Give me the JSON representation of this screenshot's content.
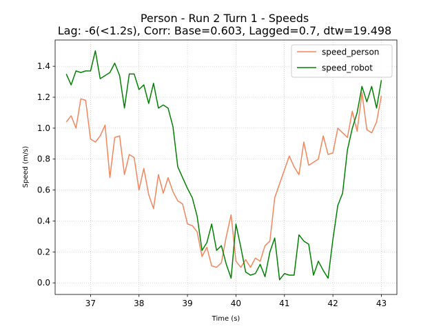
{
  "chart_data": {
    "type": "line",
    "title": "Person - Run 2 Turn 1 - Speeds",
    "subtitle": "Lag: -6(<1.2s), Corr: Base=0.603, Lagged=0.7, dtw=19.498",
    "xlabel": "Time (s)",
    "ylabel": "Speed (m/s)",
    "xlim": [
      36.27,
      43.32
    ],
    "ylim": [
      -0.075,
      1.57
    ],
    "xticks": [
      37,
      38,
      39,
      40,
      41,
      42,
      43
    ],
    "yticks": [
      0.0,
      0.2,
      0.4,
      0.6,
      0.8,
      1.0,
      1.2,
      1.4
    ],
    "ytick_labels": [
      "0.0",
      "0.2",
      "0.4",
      "0.6",
      "0.8",
      "1.0",
      "1.2",
      "1.4"
    ],
    "grid": true,
    "legend_position": "upper right",
    "series": [
      {
        "name": "speed_person",
        "color": "#f4845a",
        "x": [
          36.5,
          36.6,
          36.7,
          36.8,
          36.9,
          37.0,
          37.1,
          37.2,
          37.3,
          37.4,
          37.5,
          37.6,
          37.7,
          37.8,
          37.9,
          38.0,
          38.1,
          38.2,
          38.3,
          38.4,
          38.5,
          38.6,
          38.7,
          38.8,
          38.9,
          39.0,
          39.1,
          39.2,
          39.3,
          39.4,
          39.5,
          39.6,
          39.7,
          39.8,
          39.9,
          40.0,
          40.1,
          40.2,
          40.3,
          40.4,
          40.5,
          40.6,
          40.7,
          40.8,
          40.9,
          41.0,
          41.1,
          41.2,
          41.3,
          41.4,
          41.5,
          41.6,
          41.7,
          41.8,
          41.9,
          42.0,
          42.1,
          42.2,
          42.3,
          42.4,
          42.5,
          42.6,
          42.7,
          42.8,
          42.9,
          43.0
        ],
        "values": [
          1.04,
          1.08,
          1.0,
          1.19,
          1.18,
          0.93,
          0.91,
          0.95,
          1.02,
          0.68,
          0.94,
          0.95,
          0.7,
          0.83,
          0.81,
          0.6,
          0.74,
          0.57,
          0.48,
          0.7,
          0.58,
          0.68,
          0.59,
          0.53,
          0.51,
          0.38,
          0.37,
          0.33,
          0.17,
          0.23,
          0.11,
          0.1,
          0.13,
          0.3,
          0.44,
          0.14,
          0.1,
          0.15,
          0.1,
          0.16,
          0.14,
          0.24,
          0.27,
          0.55,
          0.64,
          0.73,
          0.82,
          0.75,
          0.7,
          0.91,
          0.76,
          0.78,
          0.8,
          0.95,
          0.83,
          0.84,
          1.0,
          0.97,
          0.94,
          1.11,
          0.98,
          1.23,
          0.99,
          0.97,
          1.04,
          1.21
        ]
      },
      {
        "name": "speed_robot",
        "color": "#008000",
        "x": [
          36.5,
          36.6,
          36.7,
          36.8,
          36.9,
          37.0,
          37.1,
          37.2,
          37.3,
          37.4,
          37.5,
          37.6,
          37.7,
          37.8,
          37.9,
          38.0,
          38.1,
          38.2,
          38.3,
          38.4,
          38.5,
          38.6,
          38.7,
          38.8,
          38.9,
          39.0,
          39.1,
          39.2,
          39.3,
          39.4,
          39.5,
          39.6,
          39.7,
          39.8,
          39.9,
          40.0,
          40.1,
          40.2,
          40.3,
          40.4,
          40.5,
          40.6,
          40.7,
          40.8,
          40.9,
          41.0,
          41.1,
          41.2,
          41.3,
          41.4,
          41.5,
          41.6,
          41.7,
          41.8,
          41.9,
          42.0,
          42.1,
          42.2,
          42.3,
          42.4,
          42.5,
          42.6,
          42.7,
          42.8,
          42.9,
          43.0
        ],
        "values": [
          1.35,
          1.28,
          1.37,
          1.36,
          1.37,
          1.37,
          1.5,
          1.32,
          1.34,
          1.36,
          1.42,
          1.34,
          1.13,
          1.35,
          1.35,
          1.25,
          1.28,
          1.16,
          1.29,
          1.13,
          1.15,
          1.13,
          1.01,
          0.75,
          0.68,
          0.61,
          0.55,
          0.43,
          0.21,
          0.26,
          0.38,
          0.21,
          0.24,
          0.12,
          0.03,
          0.38,
          0.23,
          0.07,
          0.05,
          0.06,
          0.12,
          0.04,
          0.2,
          0.29,
          0.02,
          0.06,
          0.05,
          0.05,
          0.31,
          0.27,
          0.25,
          0.05,
          0.14,
          0.08,
          0.03,
          0.28,
          0.5,
          0.58,
          0.86,
          1.0,
          1.1,
          1.27,
          1.17,
          1.27,
          1.13,
          1.31
        ]
      }
    ]
  }
}
